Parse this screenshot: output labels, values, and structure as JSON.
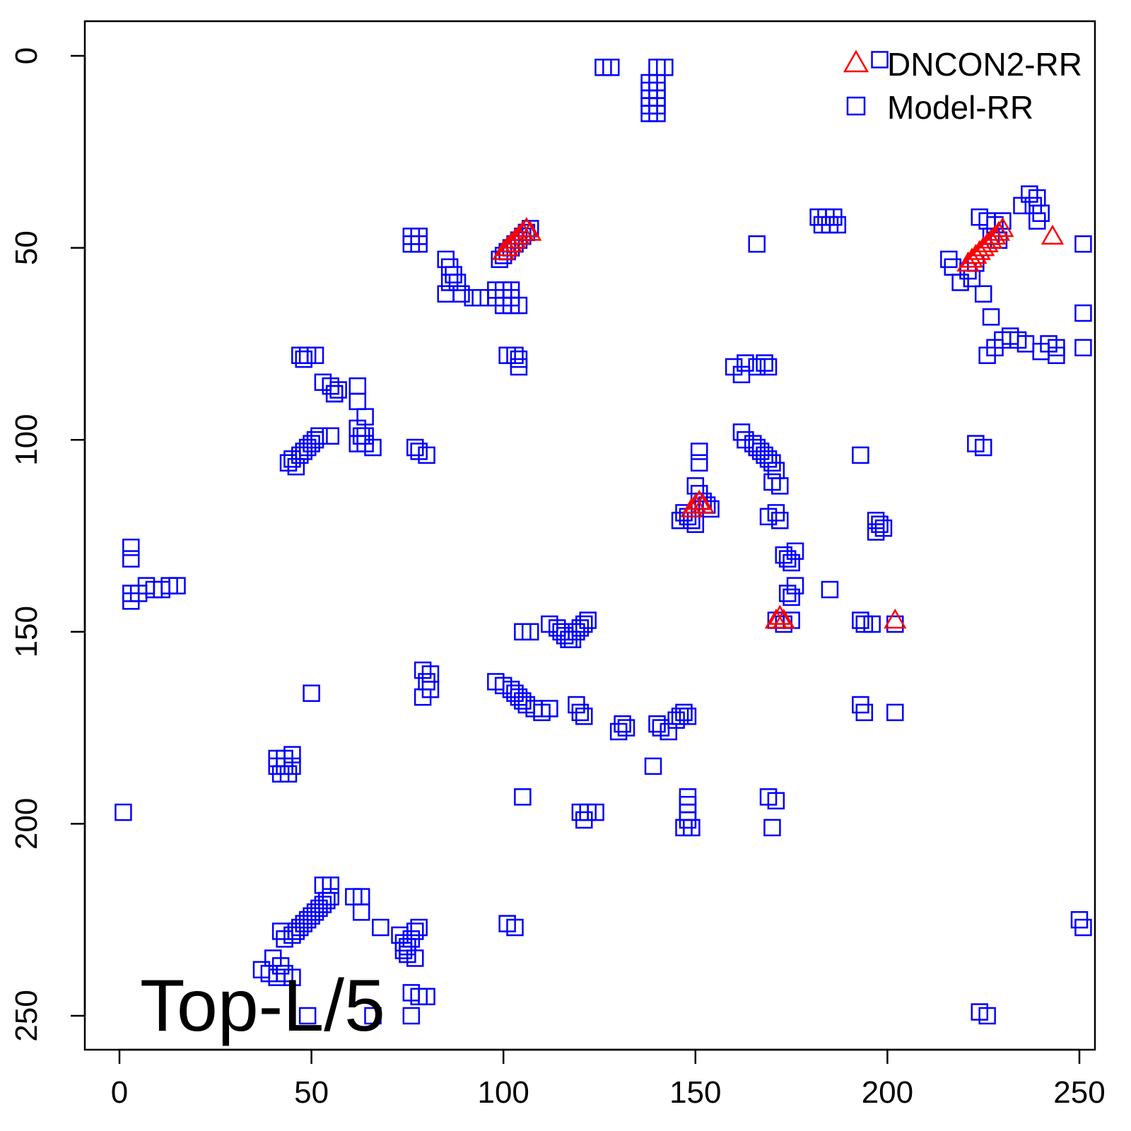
{
  "chart_data": {
    "type": "scatter",
    "title": "",
    "xlabel": "",
    "ylabel": "",
    "xlim": [
      -9,
      259
    ],
    "ylim": [
      259,
      -9
    ],
    "y_reversed": true,
    "grid": false,
    "legend_placement": "top-right",
    "x_ticks": [
      0,
      50,
      100,
      150,
      200,
      250
    ],
    "y_ticks": [
      0,
      50,
      100,
      150,
      200,
      250
    ],
    "annotation": "Top-L/5",
    "colors": {
      "dncon2": "#ff0000",
      "model": "#0000ff"
    },
    "series": [
      {
        "name": "DNCON2-RR",
        "marker": "triangle",
        "color": "#ff0000",
        "points": [
          [
            100,
            51
          ],
          [
            101,
            50
          ],
          [
            102,
            49
          ],
          [
            103,
            48
          ],
          [
            104,
            47
          ],
          [
            105,
            46
          ],
          [
            106,
            45
          ],
          [
            107,
            46
          ],
          [
            149,
            118
          ],
          [
            150,
            117
          ],
          [
            151,
            116
          ],
          [
            152,
            117
          ],
          [
            171,
            147
          ],
          [
            172,
            146
          ],
          [
            173,
            147
          ],
          [
            202,
            147
          ],
          [
            221,
            54
          ],
          [
            222,
            53
          ],
          [
            223,
            52
          ],
          [
            224,
            51
          ],
          [
            225,
            50
          ],
          [
            226,
            49
          ],
          [
            227,
            48
          ],
          [
            228,
            47
          ],
          [
            229,
            46
          ],
          [
            230,
            45
          ],
          [
            243,
            47
          ]
        ]
      },
      {
        "name": "Model-RR",
        "marker": "square",
        "color": "#0000ff",
        "points": [
          [
            126,
            3
          ],
          [
            128,
            3
          ],
          [
            140,
            3
          ],
          [
            142,
            3
          ],
          [
            138,
            7
          ],
          [
            140,
            7
          ],
          [
            138,
            9
          ],
          [
            140,
            9
          ],
          [
            138,
            11
          ],
          [
            140,
            11
          ],
          [
            138,
            13
          ],
          [
            140,
            13
          ],
          [
            138,
            15
          ],
          [
            140,
            15
          ],
          [
            76,
            47
          ],
          [
            78,
            47
          ],
          [
            76,
            49
          ],
          [
            78,
            49
          ],
          [
            85,
            53
          ],
          [
            86,
            55
          ],
          [
            87,
            57
          ],
          [
            86,
            59
          ],
          [
            88,
            59
          ],
          [
            85,
            62
          ],
          [
            89,
            62
          ],
          [
            92,
            63
          ],
          [
            94,
            63
          ],
          [
            99,
            53
          ],
          [
            100,
            52
          ],
          [
            101,
            51
          ],
          [
            102,
            50
          ],
          [
            103,
            49
          ],
          [
            104,
            48
          ],
          [
            105,
            47
          ],
          [
            106,
            46
          ],
          [
            107,
            45
          ],
          [
            98,
            61
          ],
          [
            100,
            61
          ],
          [
            102,
            61
          ],
          [
            98,
            63
          ],
          [
            100,
            63
          ],
          [
            102,
            63
          ],
          [
            100,
            65
          ],
          [
            102,
            65
          ],
          [
            104,
            65
          ],
          [
            101,
            78
          ],
          [
            103,
            78
          ],
          [
            104,
            79
          ],
          [
            104,
            81
          ],
          [
            47,
            78
          ],
          [
            49,
            78
          ],
          [
            51,
            78
          ],
          [
            48,
            79
          ],
          [
            53,
            85
          ],
          [
            55,
            86
          ],
          [
            56,
            88
          ],
          [
            57,
            87
          ],
          [
            62,
            86
          ],
          [
            62,
            90
          ],
          [
            56,
            88
          ],
          [
            64,
            94
          ],
          [
            62,
            97
          ],
          [
            64,
            99
          ],
          [
            62,
            101
          ],
          [
            64,
            101
          ],
          [
            66,
            102
          ],
          [
            63,
            99
          ],
          [
            44,
            106
          ],
          [
            45,
            105
          ],
          [
            46,
            107
          ],
          [
            47,
            104
          ],
          [
            48,
            103
          ],
          [
            49,
            102
          ],
          [
            50,
            101
          ],
          [
            51,
            100
          ],
          [
            52,
            99
          ],
          [
            55,
            99
          ],
          [
            77,
            102
          ],
          [
            78,
            103
          ],
          [
            80,
            104
          ],
          [
            3,
            128
          ],
          [
            3,
            131
          ],
          [
            3,
            140
          ],
          [
            3,
            142
          ],
          [
            5,
            140
          ],
          [
            7,
            138
          ],
          [
            9,
            139
          ],
          [
            11,
            139
          ],
          [
            13,
            138
          ],
          [
            15,
            138
          ],
          [
            1,
            197
          ],
          [
            41,
            183
          ],
          [
            43,
            183
          ],
          [
            45,
            182
          ],
          [
            41,
            185
          ],
          [
            43,
            185
          ],
          [
            45,
            185
          ],
          [
            42,
            187
          ],
          [
            44,
            187
          ],
          [
            50,
            166
          ],
          [
            105,
            150
          ],
          [
            107,
            150
          ],
          [
            112,
            148
          ],
          [
            114,
            149
          ],
          [
            115,
            150
          ],
          [
            116,
            151
          ],
          [
            117,
            152
          ],
          [
            118,
            152
          ],
          [
            119,
            150
          ],
          [
            120,
            149
          ],
          [
            121,
            148
          ],
          [
            122,
            147
          ],
          [
            98,
            163
          ],
          [
            100,
            164
          ],
          [
            102,
            165
          ],
          [
            103,
            166
          ],
          [
            104,
            167
          ],
          [
            105,
            168
          ],
          [
            106,
            169
          ],
          [
            108,
            170
          ],
          [
            110,
            171
          ],
          [
            112,
            170
          ],
          [
            79,
            160
          ],
          [
            81,
            161
          ],
          [
            80,
            163
          ],
          [
            81,
            165
          ],
          [
            79,
            167
          ],
          [
            119,
            169
          ],
          [
            120,
            171
          ],
          [
            121,
            172
          ],
          [
            131,
            174
          ],
          [
            132,
            175
          ],
          [
            130,
            176
          ],
          [
            140,
            174
          ],
          [
            141,
            175
          ],
          [
            143,
            176
          ],
          [
            145,
            173
          ],
          [
            146,
            172
          ],
          [
            147,
            171
          ],
          [
            148,
            172
          ],
          [
            139,
            185
          ],
          [
            105,
            193
          ],
          [
            120,
            197
          ],
          [
            122,
            197
          ],
          [
            124,
            197
          ],
          [
            121,
            199
          ],
          [
            148,
            193
          ],
          [
            148,
            195
          ],
          [
            148,
            197
          ],
          [
            148,
            199
          ],
          [
            147,
            201
          ],
          [
            149,
            201
          ],
          [
            166,
            49
          ],
          [
            182,
            42
          ],
          [
            184,
            42
          ],
          [
            186,
            42
          ],
          [
            183,
            44
          ],
          [
            185,
            44
          ],
          [
            187,
            44
          ],
          [
            166,
            81
          ],
          [
            168,
            80
          ],
          [
            169,
            81
          ],
          [
            163,
            80
          ],
          [
            160,
            81
          ],
          [
            162,
            83
          ],
          [
            162,
            98
          ],
          [
            163,
            100
          ],
          [
            165,
            101
          ],
          [
            166,
            102
          ],
          [
            167,
            103
          ],
          [
            168,
            104
          ],
          [
            169,
            105
          ],
          [
            170,
            106
          ],
          [
            171,
            108
          ],
          [
            170,
            111
          ],
          [
            172,
            112
          ],
          [
            150,
            112
          ],
          [
            151,
            114
          ],
          [
            152,
            116
          ],
          [
            153,
            117
          ],
          [
            154,
            118
          ],
          [
            151,
            103
          ],
          [
            151,
            106
          ],
          [
            146,
            121
          ],
          [
            148,
            120
          ],
          [
            149,
            121
          ],
          [
            150,
            122
          ],
          [
            147,
            119
          ],
          [
            169,
            120
          ],
          [
            171,
            119
          ],
          [
            172,
            121
          ],
          [
            173,
            130
          ],
          [
            174,
            131
          ],
          [
            175,
            132
          ],
          [
            176,
            129
          ],
          [
            174,
            140
          ],
          [
            175,
            141
          ],
          [
            176,
            138
          ],
          [
            185,
            139
          ],
          [
            171,
            147
          ],
          [
            173,
            148
          ],
          [
            175,
            147
          ],
          [
            169,
            193
          ],
          [
            171,
            194
          ],
          [
            170,
            201
          ],
          [
            193,
            104
          ],
          [
            197,
            121
          ],
          [
            198,
            122
          ],
          [
            197,
            124
          ],
          [
            199,
            123
          ],
          [
            193,
            147
          ],
          [
            194,
            148
          ],
          [
            196,
            148
          ],
          [
            202,
            148
          ],
          [
            193,
            169
          ],
          [
            194,
            171
          ],
          [
            202,
            171
          ],
          [
            198,
            1
          ],
          [
            216,
            53
          ],
          [
            217,
            55
          ],
          [
            219,
            59
          ],
          [
            221,
            56
          ],
          [
            222,
            58
          ],
          [
            223,
            54
          ],
          [
            225,
            62
          ],
          [
            227,
            68
          ],
          [
            224,
            42
          ],
          [
            226,
            43
          ],
          [
            228,
            44
          ],
          [
            230,
            43
          ],
          [
            227,
            47
          ],
          [
            229,
            48
          ],
          [
            235,
            39
          ],
          [
            237,
            36
          ],
          [
            239,
            37
          ],
          [
            238,
            39
          ],
          [
            240,
            41
          ],
          [
            239,
            43
          ],
          [
            226,
            78
          ],
          [
            228,
            76
          ],
          [
            230,
            74
          ],
          [
            232,
            73
          ],
          [
            234,
            74
          ],
          [
            236,
            75
          ],
          [
            242,
            75
          ],
          [
            244,
            76
          ],
          [
            240,
            77
          ],
          [
            244,
            78
          ],
          [
            251,
            49
          ],
          [
            251,
            67
          ],
          [
            251,
            76
          ],
          [
            223,
            101
          ],
          [
            225,
            102
          ],
          [
            250,
            225
          ],
          [
            251,
            227
          ],
          [
            101,
            226
          ],
          [
            103,
            227
          ],
          [
            224,
            249
          ],
          [
            226,
            250
          ],
          [
            37,
            238
          ],
          [
            39,
            239
          ],
          [
            41,
            240
          ],
          [
            43,
            239
          ],
          [
            45,
            240
          ],
          [
            40,
            235
          ],
          [
            42,
            237
          ],
          [
            42,
            228
          ],
          [
            43,
            230
          ],
          [
            45,
            229
          ],
          [
            46,
            228
          ],
          [
            47,
            227
          ],
          [
            48,
            226
          ],
          [
            49,
            225
          ],
          [
            50,
            224
          ],
          [
            51,
            223
          ],
          [
            52,
            222
          ],
          [
            53,
            221
          ],
          [
            54,
            220
          ],
          [
            55,
            219
          ],
          [
            53,
            216
          ],
          [
            55,
            216
          ],
          [
            61,
            219
          ],
          [
            63,
            219
          ],
          [
            63,
            223
          ],
          [
            68,
            227
          ],
          [
            73,
            229
          ],
          [
            74,
            231
          ],
          [
            75,
            232
          ],
          [
            76,
            230
          ],
          [
            77,
            228
          ],
          [
            78,
            227
          ],
          [
            74,
            233
          ],
          [
            75,
            234
          ],
          [
            77,
            235
          ],
          [
            76,
            244
          ],
          [
            78,
            245
          ],
          [
            80,
            245
          ],
          [
            49,
            250
          ],
          [
            66,
            250
          ],
          [
            76,
            250
          ]
        ]
      }
    ]
  }
}
